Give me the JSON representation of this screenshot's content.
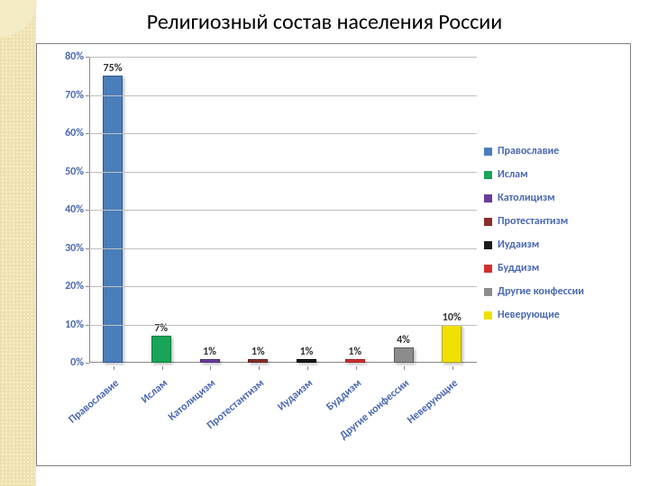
{
  "title": "Религиозный состав населения России",
  "chart": {
    "type": "bar",
    "ylim": [
      0,
      80
    ],
    "ytick_step": 10,
    "ytick_suffix": "%",
    "yaxis_label_color": "#4a68b0",
    "grid_color": "#bfbfbf",
    "axis_color": "#8a8a8a",
    "background_color": "#ffffff",
    "bar_width_ratio": 0.42,
    "data_label_suffix": "%",
    "label_fontsize": 12,
    "title_fontsize": 24,
    "categories": [
      "Православие",
      "Ислам",
      "Католицизм",
      "Протестантизм",
      "Иудаизм",
      "Буддизм",
      "Другие конфессии",
      "Неверующие"
    ],
    "values": [
      75,
      7,
      1,
      1,
      1,
      1,
      4,
      10
    ],
    "bar_colors": [
      "#4a7ebb",
      "#18a558",
      "#6a3d9a",
      "#8a2e2e",
      "#1a1a1a",
      "#d22f2f",
      "#8c8c8c",
      "#f0e000"
    ],
    "bar_border_colors": [
      "#2f5a94",
      "#0f7a3e",
      "#4a2a70",
      "#5e1e1e",
      "#000000",
      "#9e1f1f",
      "#5e5e5e",
      "#b0a400"
    ],
    "xlabel_color": "#4a68b0",
    "xlabel_rotation_deg": -40
  },
  "legend": {
    "items": [
      {
        "label": "Православие",
        "color": "#4a7ebb"
      },
      {
        "label": "Ислам",
        "color": "#18a558"
      },
      {
        "label": "Католицизм",
        "color": "#6a3d9a"
      },
      {
        "label": "Протестантизм",
        "color": "#8a2e2e"
      },
      {
        "label": "Иудаизм",
        "color": "#1a1a1a"
      },
      {
        "label": "Буддизм",
        "color": "#d22f2f"
      },
      {
        "label": "Другие конфессии",
        "color": "#8c8c8c"
      },
      {
        "label": "Неверующие",
        "color": "#f0e000"
      }
    ],
    "label_color": "#4a68b0",
    "label_fontsize": 12
  }
}
